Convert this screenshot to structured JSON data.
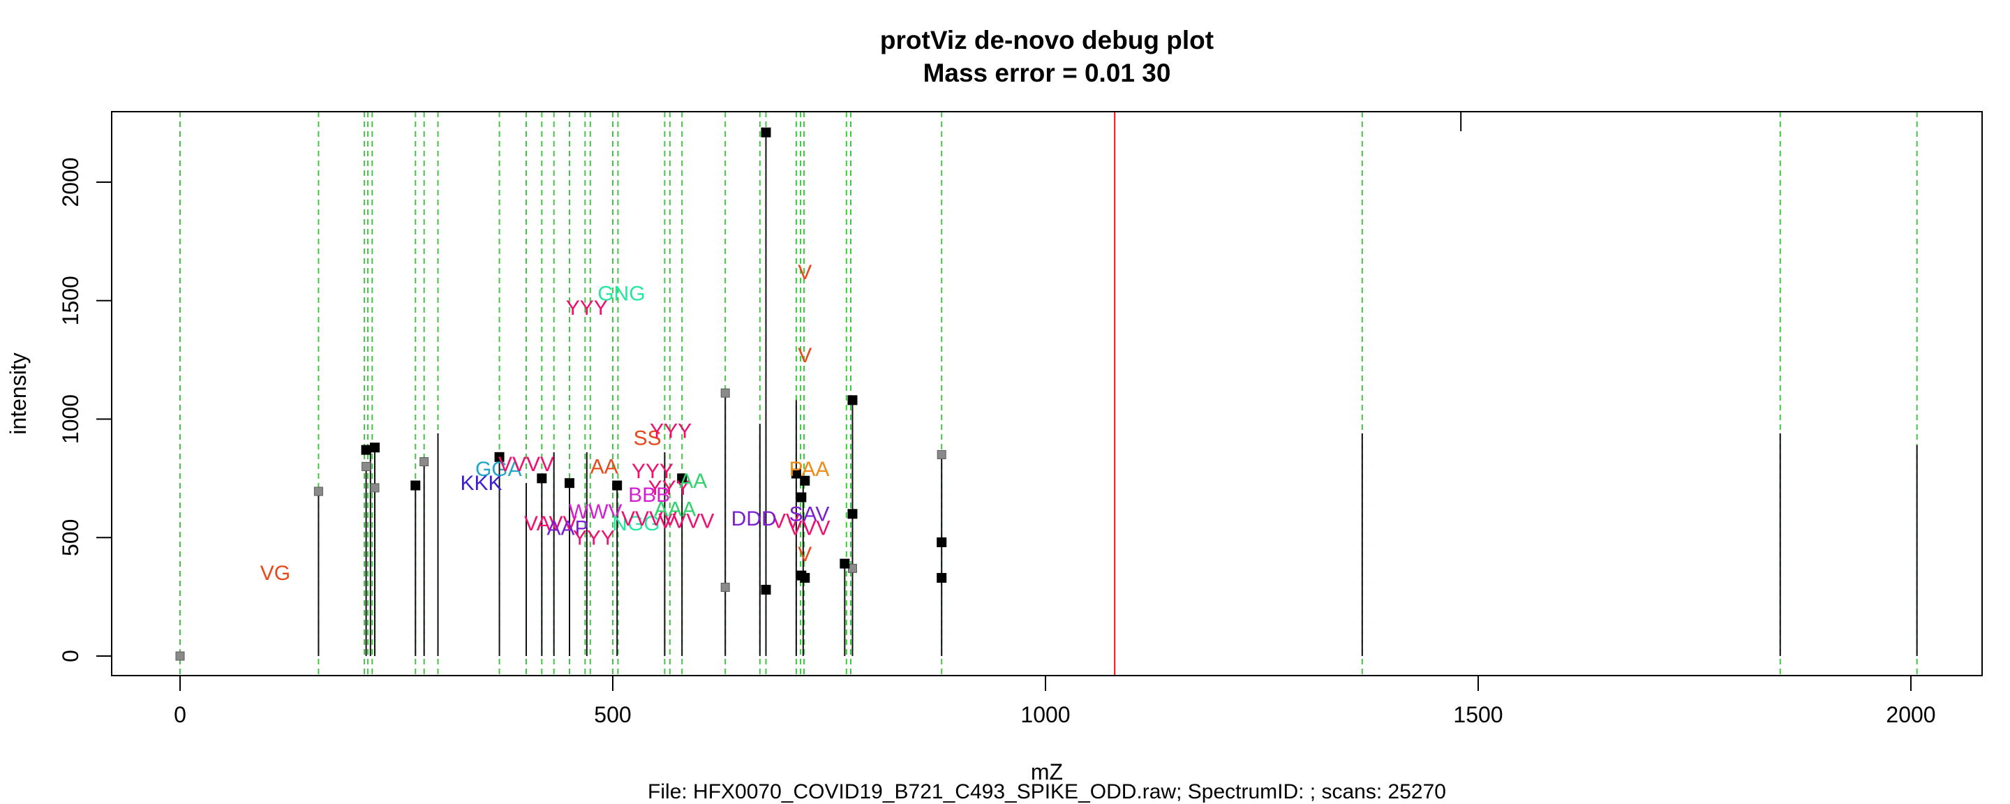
{
  "chart_data": {
    "type": "scatter",
    "title": "protViz de-novo debug plot",
    "subtitle": "Mass error = 0.01 30",
    "xlabel": "mZ",
    "ylabel": "intensity",
    "footer": "File: HFX0070_COVID19_B721_C493_SPIKE_ODD.raw; SpectrumID: ; scans: 25270",
    "xlim": [
      -80,
      2090
    ],
    "ylim": [
      -90,
      2300
    ],
    "x_ticks": [
      0,
      500,
      1000,
      1500,
      2000
    ],
    "y_ticks": [
      0,
      500,
      1000,
      1500,
      2000
    ],
    "x_tick_labels": [
      "0",
      "500",
      "1000",
      "1500",
      "2000"
    ],
    "y_tick_labels": [
      "0",
      "500",
      "1000",
      "1500",
      "2000"
    ],
    "grid": false,
    "peaks": [
      {
        "mz": 160,
        "intensity": 700
      },
      {
        "mz": 215,
        "intensity": 800
      },
      {
        "mz": 220,
        "intensity": 860
      },
      {
        "mz": 225,
        "intensity": 880
      },
      {
        "mz": 272,
        "intensity": 720
      },
      {
        "mz": 282,
        "intensity": 820
      },
      {
        "mz": 298,
        "intensity": 940
      },
      {
        "mz": 369,
        "intensity": 840
      },
      {
        "mz": 400,
        "intensity": 730
      },
      {
        "mz": 418,
        "intensity": 750
      },
      {
        "mz": 432,
        "intensity": 860
      },
      {
        "mz": 450,
        "intensity": 730
      },
      {
        "mz": 470,
        "intensity": 860
      },
      {
        "mz": 505,
        "intensity": 720
      },
      {
        "mz": 560,
        "intensity": 860
      },
      {
        "mz": 580,
        "intensity": 750
      },
      {
        "mz": 630,
        "intensity": 1110
      },
      {
        "mz": 670,
        "intensity": 980
      },
      {
        "mz": 677,
        "intensity": 2210
      },
      {
        "mz": 712,
        "intensity": 1080
      },
      {
        "mz": 720,
        "intensity": 740
      },
      {
        "mz": 768,
        "intensity": 390
      },
      {
        "mz": 777,
        "intensity": 1080
      },
      {
        "mz": 880,
        "intensity": 850
      },
      {
        "mz": 1366,
        "intensity": 940
      },
      {
        "mz": 1849,
        "intensity": 940
      },
      {
        "mz": 2007,
        "intensity": 890
      }
    ],
    "points_black": [
      {
        "mz": 215,
        "intensity": 870
      },
      {
        "mz": 225,
        "intensity": 880
      },
      {
        "mz": 272,
        "intensity": 720
      },
      {
        "mz": 369,
        "intensity": 840
      },
      {
        "mz": 418,
        "intensity": 750
      },
      {
        "mz": 450,
        "intensity": 730
      },
      {
        "mz": 505,
        "intensity": 720
      },
      {
        "mz": 580,
        "intensity": 750
      },
      {
        "mz": 677,
        "intensity": 2210
      },
      {
        "mz": 677,
        "intensity": 280
      },
      {
        "mz": 712,
        "intensity": 770
      },
      {
        "mz": 718,
        "intensity": 670
      },
      {
        "mz": 718,
        "intensity": 340
      },
      {
        "mz": 722,
        "intensity": 740
      },
      {
        "mz": 722,
        "intensity": 330
      },
      {
        "mz": 768,
        "intensity": 390
      },
      {
        "mz": 777,
        "intensity": 1080
      },
      {
        "mz": 777,
        "intensity": 600
      },
      {
        "mz": 880,
        "intensity": 480
      },
      {
        "mz": 880,
        "intensity": 330
      }
    ],
    "points_gray": [
      {
        "mz": 0,
        "intensity": 0
      },
      {
        "mz": 160,
        "intensity": 695
      },
      {
        "mz": 215,
        "intensity": 800
      },
      {
        "mz": 225,
        "intensity": 710
      },
      {
        "mz": 282,
        "intensity": 820
      },
      {
        "mz": 630,
        "intensity": 1110
      },
      {
        "mz": 630,
        "intensity": 290
      },
      {
        "mz": 777,
        "intensity": 370
      },
      {
        "mz": 880,
        "intensity": 850
      }
    ],
    "green_lines_mz": [
      0,
      160,
      213,
      217,
      222,
      272,
      282,
      298,
      369,
      400,
      418,
      432,
      450,
      468,
      474,
      500,
      506,
      560,
      566,
      580,
      630,
      670,
      677,
      712,
      717,
      721,
      770,
      775,
      880,
      1366,
      1849,
      2007
    ],
    "red_line_mz": 1080,
    "top_tick_mz": 1480,
    "labels": [
      {
        "text": "VG",
        "mz": 110,
        "intensity": 350,
        "color": "#e8491a"
      },
      {
        "text": "GGA",
        "mz": 368,
        "intensity": 790,
        "color": "#21a7c9"
      },
      {
        "text": "KKK",
        "mz": 348,
        "intensity": 730,
        "color": "#3b1fd1"
      },
      {
        "text": "VVVV",
        "mz": 400,
        "intensity": 810,
        "color": "#ef0f6f"
      },
      {
        "text": "AA",
        "mz": 490,
        "intensity": 800,
        "color": "#e8491a"
      },
      {
        "text": "YYY",
        "mz": 470,
        "intensity": 1470,
        "color": "#ef0f6f"
      },
      {
        "text": "GNG",
        "mz": 510,
        "intensity": 1530,
        "color": "#25e8a0"
      },
      {
        "text": "SS",
        "mz": 540,
        "intensity": 920,
        "color": "#e8491a"
      },
      {
        "text": "YYY",
        "mz": 567,
        "intensity": 950,
        "color": "#ef0f6f"
      },
      {
        "text": "YYY",
        "mz": 546,
        "intensity": 780,
        "color": "#ef0f6f"
      },
      {
        "text": "YYY",
        "mz": 565,
        "intensity": 710,
        "color": "#ef0f6f"
      },
      {
        "text": "AA",
        "mz": 593,
        "intensity": 740,
        "color": "#2ed36a"
      },
      {
        "text": "BBB",
        "mz": 542,
        "intensity": 680,
        "color": "#d41fd1"
      },
      {
        "text": "VAVV",
        "mz": 428,
        "intensity": 560,
        "color": "#ef0f6f"
      },
      {
        "text": "WWV",
        "mz": 480,
        "intensity": 610,
        "color": "#d41fd1"
      },
      {
        "text": "AAP",
        "mz": 448,
        "intensity": 540,
        "color": "#7a1fd1"
      },
      {
        "text": "YYY",
        "mz": 478,
        "intensity": 500,
        "color": "#ef0f6f"
      },
      {
        "text": "NGG",
        "mz": 527,
        "intensity": 560,
        "color": "#25e8a0"
      },
      {
        "text": "VVVV",
        "mz": 542,
        "intensity": 580,
        "color": "#ef0f6f"
      },
      {
        "text": "VVVV",
        "mz": 585,
        "intensity": 570,
        "color": "#ef0f6f"
      },
      {
        "text": "AAA",
        "mz": 572,
        "intensity": 620,
        "color": "#2ed36a"
      },
      {
        "text": "VV",
        "mz": 700,
        "intensity": 570,
        "color": "#ef0f6f"
      },
      {
        "text": "DDD",
        "mz": 663,
        "intensity": 580,
        "color": "#7a1fd1"
      },
      {
        "text": "PAA",
        "mz": 727,
        "intensity": 790,
        "color": "#f08a14"
      },
      {
        "text": "SAV",
        "mz": 727,
        "intensity": 600,
        "color": "#7a1fd1"
      },
      {
        "text": "VVV",
        "mz": 727,
        "intensity": 540,
        "color": "#ef0f6f"
      },
      {
        "text": "V",
        "mz": 722,
        "intensity": 1620,
        "color": "#e8491a"
      },
      {
        "text": "V",
        "mz": 722,
        "intensity": 1270,
        "color": "#e8491a"
      },
      {
        "text": "V",
        "mz": 722,
        "intensity": 430,
        "color": "#e8491a"
      }
    ]
  }
}
